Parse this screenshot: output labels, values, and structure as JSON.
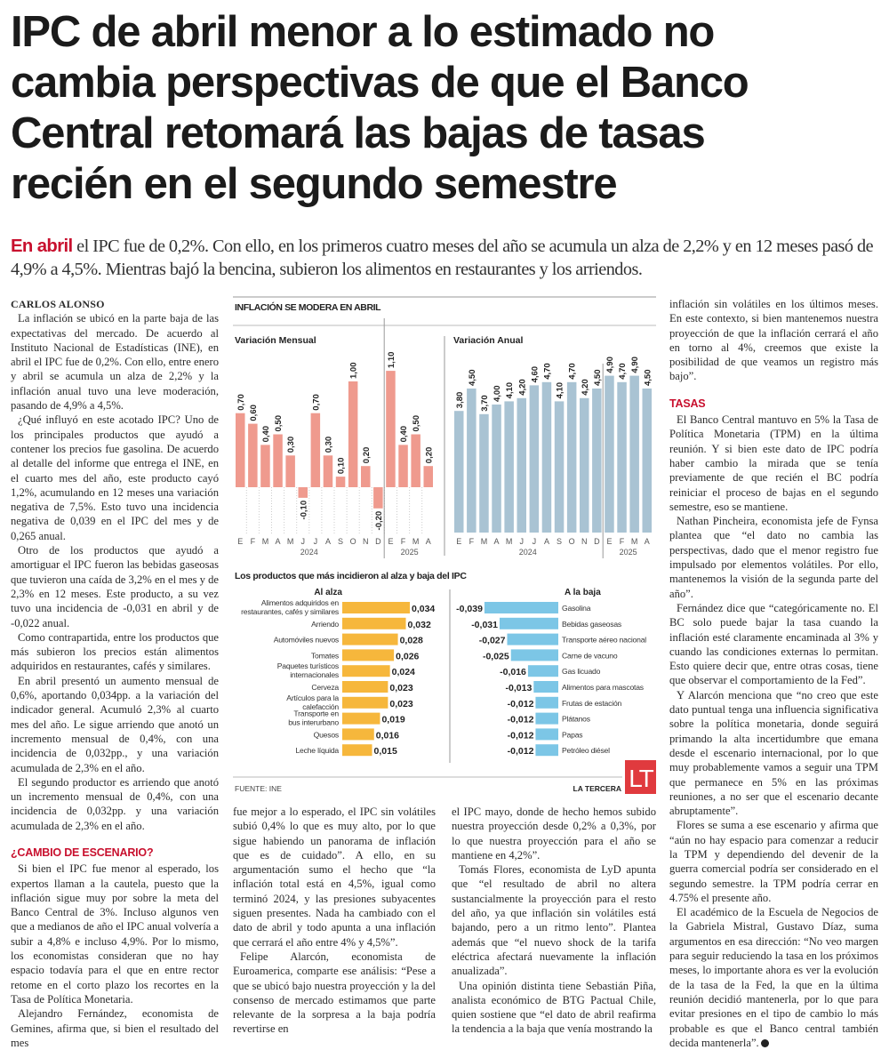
{
  "headline": {
    "lines": [
      "IPC de abril menor a lo estimado no",
      "cambia perspectivas de que el Banco",
      "Central retomará las bajas de tasas",
      "recién en el segundo semestre"
    ]
  },
  "deck": {
    "lead": "En abril",
    "text": " el IPC fue de 0,2%. Con ello, en los primeros cuatro meses del año se acumula un alza de 2,2% y en 12 meses pasó de 4,9% a 4,5%. Mientras bajó la bencina, subieron los alimentos en restaurantes y los arriendos."
  },
  "article": {
    "author": "CARLOS ALONSO",
    "col1": [
      "La inflación se ubicó en la parte baja de las expectativas del mercado. De acuerdo al Instituto Nacional de Estadísticas (INE), en abril el IPC fue de 0,2%. Con ello, entre enero y abril se acumula un alza de 2,2% y la inflación anual tuvo una leve moderación, pasando de 4,9% a 4,5%.",
      "¿Qué influyó en este acotado IPC? Uno de los principales productos que ayudó a contener los precios fue gasolina. De acuerdo al detalle del informe que entrega el INE, en el cuarto mes del año, este producto cayó 1,2%, acumulando en 12 meses una variación negativa de 7,5%. Esto tuvo una incidencia negativa de 0,039 en el IPC del mes y de 0,265 anual.",
      "Otro de los productos que ayudó a amortiguar el IPC fueron las bebidas gaseosas que tuvieron una caída de 3,2% en el mes y de 2,3% en 12 meses. Este producto, a su vez tuvo una incidencia de -0,031 en abril y de -0,022 anual.",
      "Como contrapartida, entre los productos que más subieron los precios están alimentos adquiridos en restaurantes, cafés y similares.",
      "En abril presentó un aumento mensual de 0,6%, aportando 0,034pp. a la variación del indicador general. Acumuló 2,3% al cuarto mes del año. Le sigue arriendo que anotó un incremento mensual de 0,4%, con una incidencia de 0,032pp., y una variación acumulada de 2,3% en el año.",
      "El segundo productor es arriendo que anotó un incremento mensual de 0,4%, con una incidencia de 0,032pp. y una variación acumulada de 2,3% en el año."
    ],
    "heading1": "¿CAMBIO DE ESCENARIO?",
    "col1b": [
      "Si bien el IPC fue menor al esperado, los expertos llaman a la cautela, puesto que la inflación sigue muy por sobre la meta del Banco Central de 3%. Incluso algunos ven que a medianos de año el IPC anual volvería a subir a 4,8% e incluso 4,9%. Por lo mismo, los economistas consideran que no hay espacio todavía para el que en entre rector retome en el corto plazo los recortes en la Tasa de Política Monetaria.",
      "Alejandro Fernández, economista de Gemines, afirma que, si bien el resultado del mes"
    ],
    "col2": [
      "fue mejor a lo esperado, el IPC sin volátiles subió 0,4% lo que es muy alto, por lo que sigue habiendo un panorama de inflación que es de cuidado”. A ello, en su argumentación sumo el hecho que “la inflación total está en 4,5%, igual como terminó 2024, y las presiones subyacentes siguen presentes. Nada ha cambiado con el dato de abril y todo apunta a una inflación que cerrará el año entre 4% y 4,5%”.",
      "Felipe Alarcón, economista de Euroamerica, comparte ese análisis: “Pese a que se ubicó bajo nuestra proyección y la del consenso de mercado estimamos que parte relevante de la sorpresa a la baja podría revertirse en"
    ],
    "col3": [
      "el IPC mayo, donde de hecho hemos subido nuestra proyección desde 0,2% a 0,3%, por lo que nuestra proyección para el año se mantiene en 4,2%”.",
      "Tomás Flores, economista de LyD apunta que “el resultado de abril no altera sustancialmente la proyección para el resto del año, ya que inflación sin volátiles está bajando, pero a un ritmo lento”. Plantea además que “el nuevo shock de la tarifa eléctrica afectará nuevamente la inflación anualizada”.",
      "Una opinión distinta tiene Sebastián Piña, analista económico de BTG Pactual Chile, quien sostiene que “el dato de abril reafirma la tendencia a la baja que venía mostrando la"
    ],
    "col4": [
      "inflación sin volátiles en los últimos meses. En este contexto, si bien mantenemos nuestra proyección de que la inflación cerrará el año en torno al 4%, creemos que existe la posibilidad de que veamos un registro más bajo”."
    ],
    "heading2": "TASAS",
    "col4b": [
      "El Banco Central mantuvo en 5% la Tasa de Política Monetaria (TPM) en la última reunión. Y si bien este dato de IPC podría haber cambio la mirada que se tenía previamente de que recién el BC podría reiniciar el proceso de bajas en el segundo semestre, eso se mantiene.",
      "Nathan Pincheira, economista jefe de Fynsa plantea que “el dato no cambia las perspectivas, dado que el menor registro fue impulsado por elementos volátiles. Por ello, mantenemos la visión de la segunda parte del año”.",
      "Fernández dice que “categóricamente no. El BC solo puede bajar la tasa cuando la inflación esté claramente encaminada al 3% y cuando las condiciones externas lo permitan. Esto quiere decir que, entre otras cosas, tiene que observar el comportamiento de la Fed”.",
      "Y Alarcón menciona que “no creo que este dato puntual tenga una influencia significativa sobre la política monetaria, donde seguirá primando la alta incertidumbre que emana desde el escenario internacional, por lo que muy probablemente vamos a seguir una TPM que permanece en 5% en las próximas reuniones, a no ser que el escenario decante abruptamente”.",
      "Flores se suma a ese escenario y afirma que “aún no hay espacio para comenzar a reducir la TPM y dependiendo del devenir de la guerra comercial podría ser considerado en el segundo semestre. la TPM podría cerrar en 4.75% el presente año.",
      "El académico de la Escuela de Negocios de la Gabriela Mistral, Gustavo Díaz, suma argumentos en esa dirección: “No veo margen para seguir reduciendo la tasa en los próximos meses, lo importante ahora es ver la evolución de la tasa de la Fed, la que en la última reunión decidió mantenerla, por lo que para evitar presiones en el tipo de cambio lo más probable es que el Banco central también decida mantenerla”."
    ]
  },
  "graphic": {
    "title": "INFLACIÓN SE MODERA EN ABRIL",
    "source": "FUENTE: INE",
    "credit": "LA TERCERA",
    "logo_text": "LT",
    "colors": {
      "monthly": "#ef9a8e",
      "annual": "#a9c3d3",
      "up": "#f6b73c",
      "down": "#7cc6e6",
      "accent": "#c8102e",
      "logo": "#e03a3e"
    }
  },
  "chart_data": [
    {
      "type": "bar",
      "title": "Variación Mensual",
      "categories": [
        "E",
        "F",
        "M",
        "A",
        "M",
        "J",
        "J",
        "A",
        "S",
        "O",
        "N",
        "D",
        "E",
        "F",
        "M",
        "A"
      ],
      "groups": [
        {
          "label": "2024",
          "count": 12
        },
        {
          "label": "2025",
          "count": 4
        }
      ],
      "values": [
        0.7,
        0.6,
        0.4,
        0.5,
        0.3,
        -0.1,
        0.7,
        0.3,
        0.1,
        1.0,
        0.2,
        -0.2,
        1.1,
        0.4,
        0.5,
        0.2
      ],
      "labels": [
        "0,70",
        "0,60",
        "0,40",
        "0,50",
        "0,30",
        "-0,10",
        "0,70",
        "0,30",
        "0,10",
        "1,00",
        "0,20",
        "-0,20",
        "1,10",
        "0,40",
        "0,50",
        "0,20"
      ],
      "color": "#ef9a8e"
    },
    {
      "type": "bar",
      "title": "Variación Anual",
      "categories": [
        "E",
        "F",
        "M",
        "A",
        "M",
        "J",
        "J",
        "A",
        "S",
        "O",
        "N",
        "D",
        "E",
        "F",
        "M",
        "A"
      ],
      "groups": [
        {
          "label": "2024",
          "count": 12
        },
        {
          "label": "2025",
          "count": 4
        }
      ],
      "values": [
        3.8,
        4.5,
        3.7,
        4.0,
        4.1,
        4.2,
        4.6,
        4.7,
        4.1,
        4.7,
        4.2,
        4.5,
        4.9,
        4.7,
        4.9,
        4.5
      ],
      "labels": [
        "3,80",
        "4,50",
        "3,70",
        "4,00",
        "4,10",
        "4,20",
        "4,60",
        "4,70",
        "4,10",
        "4,70",
        "4,20",
        "4,50",
        "4,90",
        "4,70",
        "4,90",
        "4,50"
      ],
      "color": "#a9c3d3"
    },
    {
      "type": "bar",
      "orientation": "horizontal",
      "title": "Los productos que más incidieron al alza y baja del IPC",
      "subtitle": "Al alza",
      "categories": [
        "Alimentos adquiridos en|restaurantes, cafés y similares",
        "Arriendo",
        "Automóviles nuevos",
        "Tomates",
        "Paquetes turísticos|internacionales",
        "Cerveza",
        "Artículos para la|calefacción",
        "Transporte en|bus interurbano",
        "Quesos",
        "Leche líquida"
      ],
      "values": [
        0.034,
        0.032,
        0.028,
        0.026,
        0.024,
        0.023,
        0.023,
        0.019,
        0.016,
        0.015
      ],
      "labels": [
        "0,034",
        "0,032",
        "0,028",
        "0,026",
        "0,024",
        "0,023",
        "0,023",
        "0,019",
        "0,016",
        "0,015"
      ],
      "color": "#f6b73c"
    },
    {
      "type": "bar",
      "orientation": "horizontal",
      "subtitle": "A la baja",
      "categories": [
        "Gasolina",
        "Bebidas gaseosas",
        "Transporte aéreo nacional",
        "Carne de vacuno",
        "Gas licuado",
        "Alimentos para mascotas",
        "Frutas de estación",
        "Plátanos",
        "Papas",
        "Petróleo diésel"
      ],
      "values": [
        -0.039,
        -0.031,
        -0.027,
        -0.025,
        -0.016,
        -0.013,
        -0.012,
        -0.012,
        -0.012,
        -0.012
      ],
      "labels": [
        "-0,039",
        "-0,031",
        "-0,027",
        "-0,025",
        "-0,016",
        "-0,013",
        "-0,012",
        "-0,012",
        "-0,012",
        "-0,012"
      ],
      "color": "#7cc6e6"
    }
  ]
}
